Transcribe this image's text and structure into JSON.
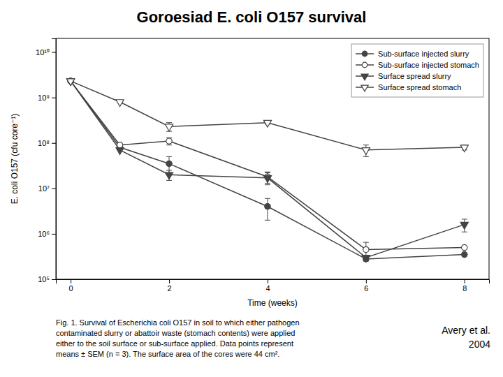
{
  "chart_data": {
    "type": "line",
    "title": "Goroesiad E. coli O157 survival",
    "xlabel": "Time (weeks)",
    "ylabel": "E. coli O157 (cfu core⁻¹)",
    "x": [
      0,
      1,
      2,
      4,
      6,
      8
    ],
    "xlim": [
      -0.3,
      8.5
    ],
    "xticks": [
      0,
      2,
      4,
      6,
      8
    ],
    "ylim": [
      100000,
      20000000000
    ],
    "yticks": [
      {
        "value": 100000,
        "label": "10⁵"
      },
      {
        "value": 1000000,
        "label": "10⁶"
      },
      {
        "value": 10000000,
        "label": "10⁷"
      },
      {
        "value": 100000000,
        "label": "10⁸"
      },
      {
        "value": 1000000000,
        "label": "10⁹"
      },
      {
        "value": 10000000000,
        "label": "10¹⁰"
      }
    ],
    "log": "y",
    "grid": false,
    "legend": "top-right",
    "series": [
      {
        "name": "Sub-surface injected slurry",
        "color": "#444444",
        "marker": "circle",
        "values": [
          2300000000.0,
          80000000.0,
          35000000.0,
          4000000.0,
          280000.0,
          350000.0
        ],
        "errors": [
          0,
          0,
          15000000.0,
          2000000.0,
          0,
          0
        ]
      },
      {
        "name": "Sub-surface injected stomach",
        "color": "#444444",
        "marker": "circle-open",
        "values": [
          2300000000.0,
          90000000.0,
          110000000.0,
          18000000.0,
          450000.0,
          500000.0
        ],
        "errors": [
          0,
          0,
          20000000.0,
          5000000.0,
          200000.0,
          0
        ]
      },
      {
        "name": "Surface spread slurry",
        "color": "#444444",
        "marker": "triangle-down",
        "values": [
          2300000000.0,
          70000000.0,
          20000000.0,
          17000000.0,
          300000.0,
          1600000.0
        ],
        "errors": [
          0,
          0,
          5000000.0,
          5000000.0,
          0,
          500000.0
        ]
      },
      {
        "name": "Surface spread stomach",
        "color": "#444444",
        "marker": "triangle-down-open",
        "values": [
          2300000000.0,
          800000000.0,
          230000000.0,
          280000000.0,
          70000000.0,
          80000000.0
        ],
        "errors": [
          0,
          0,
          50000000.0,
          20000000.0,
          20000000.0,
          10000000.0
        ]
      }
    ],
    "annotations": [
      [
        "Fig. 1. Survival of Escherichia coli O157 in soil to which either pathogen",
        "contaminated slurry or abattoir waste (stomach contents) were applied",
        "either to the soil surface or sub-surface applied. Data points represent",
        "means ± SEM (n = 3). The surface area of the cores were 44 cm²."
      ],
      [
        "Avery et al.",
        "2004"
      ]
    ]
  }
}
